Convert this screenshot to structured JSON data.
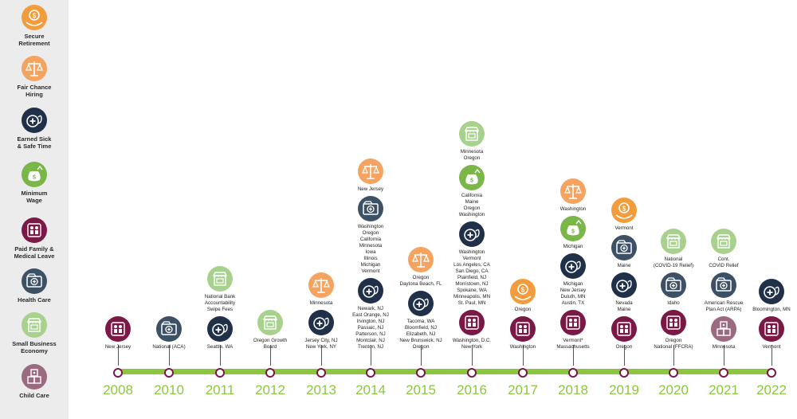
{
  "colors": {
    "secure_retirement": "#f39c3d",
    "fair_chance_hiring": "#f4a460",
    "earned_sick": "#1f3048",
    "minimum_wage": "#7ab648",
    "paid_family": "#7a1846",
    "health_care": "#3d5166",
    "small_business": "#a9d18e",
    "child_care": "#9a6a80",
    "timeline_bar": "#8dc63f",
    "dot_border": "#7a1846"
  },
  "legend": [
    {
      "key": "secure_retirement",
      "label": "Secure\nRetirement",
      "icon": "dollar-hands-icon"
    },
    {
      "key": "fair_chance_hiring",
      "label": "Fair Chance\nHiring",
      "icon": "scales-icon"
    },
    {
      "key": "earned_sick",
      "label": "Earned Sick\n& Safe Time",
      "icon": "stethoscope-icon"
    },
    {
      "key": "minimum_wage",
      "label": "Minimum\nWage",
      "icon": "money-bag-icon"
    },
    {
      "key": "paid_family",
      "label": "Paid Family &\nMedical Leave",
      "icon": "family-icon"
    },
    {
      "key": "health_care",
      "label": "Health Care",
      "icon": "medical-folder-icon"
    },
    {
      "key": "small_business",
      "label": "Small Business\nEconomy",
      "icon": "storefront-icon"
    },
    {
      "key": "child_care",
      "label": "Child Care",
      "icon": "blocks-icon"
    }
  ],
  "years": [
    {
      "year": "2008",
      "blocks": [
        {
          "type": "paid_family",
          "text": "New Jersey"
        }
      ]
    },
    {
      "year": "2010",
      "blocks": [
        {
          "type": "health_care",
          "text": "National (ACA)"
        }
      ]
    },
    {
      "year": "2011",
      "blocks": [
        {
          "type": "small_business",
          "text": "National Bank\nAccountability\nSwipe Fees"
        },
        {
          "type": "earned_sick",
          "text": "Seattle, WA"
        }
      ]
    },
    {
      "year": "2012",
      "blocks": [
        {
          "type": "small_business",
          "text": "Oregon Growth\nBoard"
        }
      ]
    },
    {
      "year": "2013",
      "blocks": [
        {
          "type": "fair_chance_hiring",
          "text": "Minnesota"
        },
        {
          "type": "earned_sick",
          "text": "Jersey City, NJ\nNew York, NY"
        }
      ]
    },
    {
      "year": "2014",
      "blocks": [
        {
          "type": "fair_chance_hiring",
          "text": "New Jersey"
        },
        {
          "type": "health_care",
          "text": "Washington\nOregon\nCalifornia\nMinnesota\nIowa\nIllinois\nMichigan\nVermont"
        },
        {
          "type": "earned_sick",
          "text": "Newark, NJ\nEast Orange, NJ\nIrvington, NJ\nPassaic, NJ\nPatterson, NJ\nMontclair, NJ\nTrenton, NJ"
        }
      ]
    },
    {
      "year": "2015",
      "blocks": [
        {
          "type": "fair_chance_hiring",
          "text": "Oregon\nDaytona Beach, FL"
        },
        {
          "type": "earned_sick",
          "text": "Tacoma, WA\nBloomfield, NJ\nElizabeth, NJ\nNew Brunswick, NJ\nOregon"
        }
      ]
    },
    {
      "year": "2016",
      "blocks": [
        {
          "type": "small_business",
          "text": "Minnesota\nOregon"
        },
        {
          "type": "minimum_wage",
          "text": "California\nMaine\nOregon\nWashington"
        },
        {
          "type": "earned_sick",
          "text": "Washington\nVermont\nLos Angeles, CA\nSan Diego, CA\nPlainfield, NJ\nMorristown, NJ\nSpokane, WA\nMinneapolis, MN\nSt. Paul, MN"
        },
        {
          "type": "paid_family",
          "text": "Washington, D.C.\nNew York"
        }
      ]
    },
    {
      "year": "2017",
      "blocks": [
        {
          "type": "secure_retirement",
          "text": "Oregon"
        },
        {
          "type": "paid_family",
          "text": "Washington"
        }
      ]
    },
    {
      "year": "2018",
      "blocks": [
        {
          "type": "fair_chance_hiring",
          "text": "Washington"
        },
        {
          "type": "minimum_wage",
          "text": "Michigan"
        },
        {
          "type": "earned_sick",
          "text": "Michigan\nNew Jersey\nDuluth, MN\nAustin, TX"
        },
        {
          "type": "paid_family",
          "text": "Vermont*\nMassachusetts"
        }
      ]
    },
    {
      "year": "2019",
      "blocks": [
        {
          "type": "secure_retirement",
          "text": "Vermont"
        },
        {
          "type": "health_care",
          "text": "Maine"
        },
        {
          "type": "earned_sick",
          "text": "Nevada\nMaine"
        },
        {
          "type": "paid_family",
          "text": "Oregon"
        }
      ]
    },
    {
      "year": "2020",
      "blocks": [
        {
          "type": "small_business",
          "text": "National\n(COVID-19 Relief)"
        },
        {
          "type": "health_care",
          "text": "Idaho"
        },
        {
          "type": "paid_family",
          "text": "Oregon\nNational (FFCRA)"
        }
      ]
    },
    {
      "year": "2021",
      "blocks": [
        {
          "type": "small_business",
          "text": "Cont.\nCOVID Relief"
        },
        {
          "type": "health_care",
          "text": "American Rescue\nPlan Act (ARPA)"
        },
        {
          "type": "child_care",
          "text": "Minnesota"
        }
      ]
    },
    {
      "year": "2022",
      "blocks": [
        {
          "type": "earned_sick",
          "text": "Bloomington, MN"
        },
        {
          "type": "paid_family",
          "text": "Vermont"
        }
      ]
    }
  ]
}
